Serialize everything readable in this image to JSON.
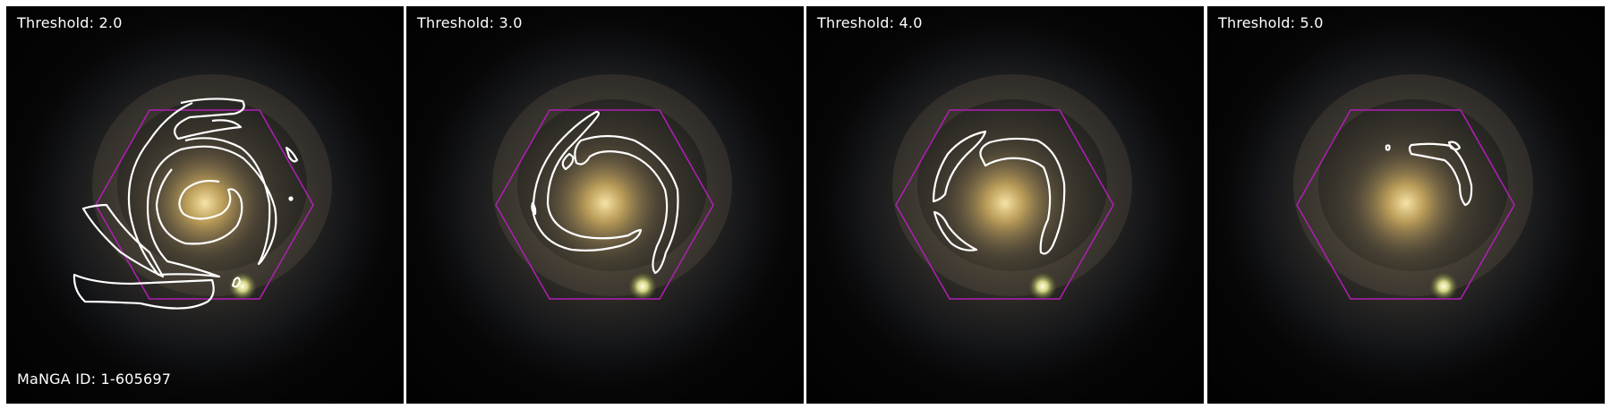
{
  "panels": [
    {
      "threshold_label": "Threshold: 2.0"
    },
    {
      "threshold_label": "Threshold: 3.0"
    },
    {
      "threshold_label": "Threshold: 4.0"
    },
    {
      "threshold_label": "Threshold: 5.0"
    }
  ],
  "manga_id_label": "MaNGA ID: 1-605697",
  "colors": {
    "background": "#050505",
    "hexagon": "#b01fb5",
    "contour": "#ffffff",
    "galaxy_core": "#d9b96a"
  }
}
